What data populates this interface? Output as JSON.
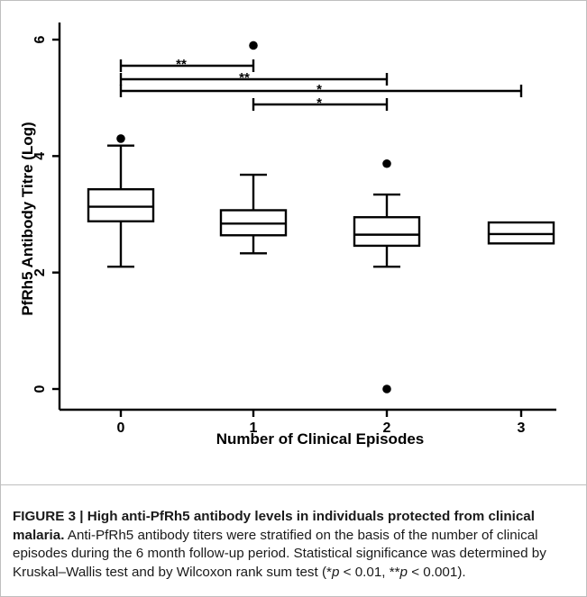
{
  "chart_data": {
    "type": "box",
    "xlabel": "Number of Clinical Episodes",
    "ylabel": "PfRh5 Antibody Titre (Log)",
    "ylim": [
      0,
      6.3
    ],
    "y_ticks": [
      "0",
      "2",
      "4",
      "6"
    ],
    "categories": [
      "0",
      "1",
      "2",
      "3"
    ],
    "boxes": [
      {
        "category": "0",
        "whisker_low": 2.1,
        "q1": 2.88,
        "median": 3.13,
        "q3": 3.43,
        "whisker_high": 4.18,
        "outliers": [
          4.3
        ]
      },
      {
        "category": "1",
        "whisker_low": 2.33,
        "q1": 2.64,
        "median": 2.84,
        "q3": 3.07,
        "whisker_high": 3.68,
        "outliers": [
          5.9
        ]
      },
      {
        "category": "2",
        "whisker_low": 2.1,
        "q1": 2.46,
        "median": 2.65,
        "q3": 2.95,
        "whisker_high": 3.34,
        "outliers": [
          3.87,
          0.0
        ]
      },
      {
        "category": "3",
        "whisker_low": null,
        "q1": 2.5,
        "median": 2.66,
        "q3": 2.86,
        "whisker_high": null,
        "outliers": []
      }
    ],
    "significance": [
      {
        "from": "0",
        "to": "1",
        "label": "**"
      },
      {
        "from": "0",
        "to": "2",
        "label": "**"
      },
      {
        "from": "0",
        "to": "3",
        "label": "*"
      },
      {
        "from": "1",
        "to": "2",
        "label": "*"
      }
    ]
  },
  "caption": {
    "title": "FIGURE 3 | High anti-PfRh5 antibody levels in individuals protected from clinical malaria.",
    "body": "Anti-PfRh5 antibody titers were stratified on the basis of the number of clinical episodes during the 6 month follow-up period. Statistical significance was determined by Kruskal–Wallis test and by Wilcoxon rank sum test (",
    "sig1_prefix": "*",
    "p_symbol_1": "p",
    "sig1_value": " < 0.01, ",
    "sig2_prefix": "**",
    "p_symbol_2": "p",
    "sig2_value": " < 0.001)."
  }
}
